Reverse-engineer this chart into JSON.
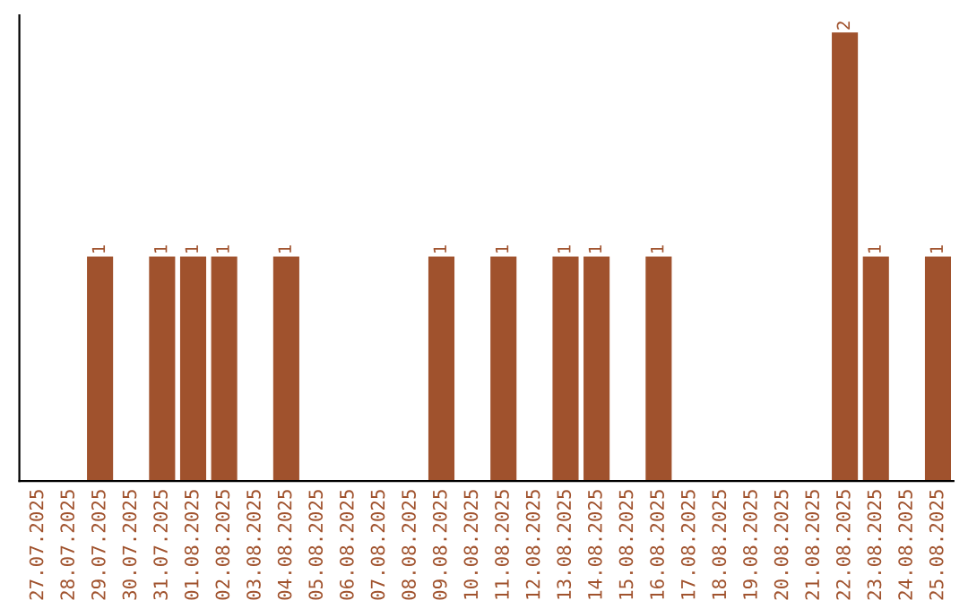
{
  "chart_data": {
    "type": "bar",
    "categories": [
      "27.07.2025",
      "28.07.2025",
      "29.07.2025",
      "30.07.2025",
      "31.07.2025",
      "01.08.2025",
      "02.08.2025",
      "03.08.2025",
      "04.08.2025",
      "05.08.2025",
      "06.08.2025",
      "07.08.2025",
      "08.08.2025",
      "09.08.2025",
      "10.08.2025",
      "11.08.2025",
      "12.08.2025",
      "13.08.2025",
      "14.08.2025",
      "15.08.2025",
      "16.08.2025",
      "17.08.2025",
      "18.08.2025",
      "19.08.2025",
      "20.08.2025",
      "21.08.2025",
      "22.08.2025",
      "23.08.2025",
      "24.08.2025",
      "25.08.2025"
    ],
    "values": [
      0,
      0,
      1,
      0,
      1,
      1,
      1,
      0,
      1,
      0,
      0,
      0,
      0,
      1,
      0,
      1,
      0,
      1,
      1,
      0,
      1,
      0,
      0,
      0,
      0,
      0,
      2,
      1,
      0,
      1
    ],
    "value_labels": [
      null,
      null,
      "1",
      null,
      "1",
      "1",
      "1",
      null,
      "1",
      null,
      null,
      null,
      null,
      "1",
      null,
      "1",
      null,
      "1",
      "1",
      null,
      "1",
      null,
      null,
      null,
      null,
      null,
      "2",
      "1",
      null,
      "1"
    ],
    "color": "#a0522d",
    "tick_labels": "x",
    "grid": false,
    "legend": false
  }
}
